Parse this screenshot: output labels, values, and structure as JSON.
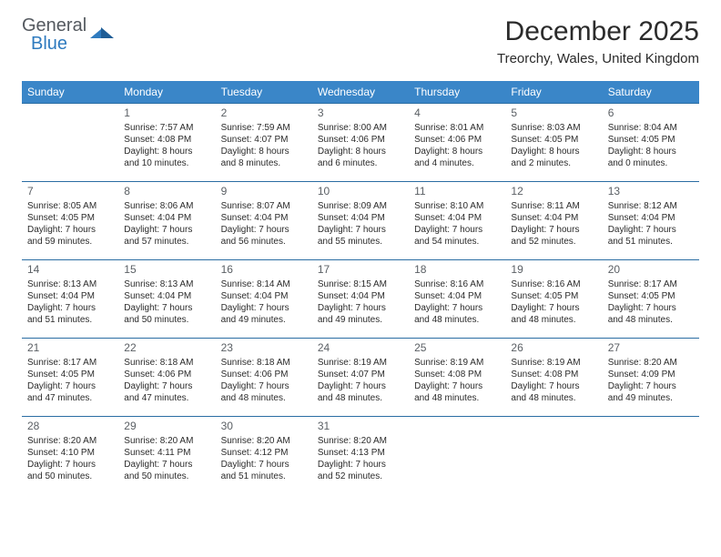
{
  "brand": {
    "top": "General",
    "bottom": "Blue"
  },
  "title": "December 2025",
  "location": "Treorchy, Wales, United Kingdom",
  "colors": {
    "header_bg": "#3a86c8",
    "divider": "#2a6da3",
    "text": "#2b2b2b",
    "logo_gray": "#54595f",
    "logo_blue": "#2f7bbf"
  },
  "daysOfWeek": [
    "Sunday",
    "Monday",
    "Tuesday",
    "Wednesday",
    "Thursday",
    "Friday",
    "Saturday"
  ],
  "weeks": [
    [
      {
        "num": "",
        "lines": [
          "",
          "",
          "",
          ""
        ]
      },
      {
        "num": "1",
        "lines": [
          "Sunrise: 7:57 AM",
          "Sunset: 4:08 PM",
          "Daylight: 8 hours",
          "and 10 minutes."
        ]
      },
      {
        "num": "2",
        "lines": [
          "Sunrise: 7:59 AM",
          "Sunset: 4:07 PM",
          "Daylight: 8 hours",
          "and 8 minutes."
        ]
      },
      {
        "num": "3",
        "lines": [
          "Sunrise: 8:00 AM",
          "Sunset: 4:06 PM",
          "Daylight: 8 hours",
          "and 6 minutes."
        ]
      },
      {
        "num": "4",
        "lines": [
          "Sunrise: 8:01 AM",
          "Sunset: 4:06 PM",
          "Daylight: 8 hours",
          "and 4 minutes."
        ]
      },
      {
        "num": "5",
        "lines": [
          "Sunrise: 8:03 AM",
          "Sunset: 4:05 PM",
          "Daylight: 8 hours",
          "and 2 minutes."
        ]
      },
      {
        "num": "6",
        "lines": [
          "Sunrise: 8:04 AM",
          "Sunset: 4:05 PM",
          "Daylight: 8 hours",
          "and 0 minutes."
        ]
      }
    ],
    [
      {
        "num": "7",
        "lines": [
          "Sunrise: 8:05 AM",
          "Sunset: 4:05 PM",
          "Daylight: 7 hours",
          "and 59 minutes."
        ]
      },
      {
        "num": "8",
        "lines": [
          "Sunrise: 8:06 AM",
          "Sunset: 4:04 PM",
          "Daylight: 7 hours",
          "and 57 minutes."
        ]
      },
      {
        "num": "9",
        "lines": [
          "Sunrise: 8:07 AM",
          "Sunset: 4:04 PM",
          "Daylight: 7 hours",
          "and 56 minutes."
        ]
      },
      {
        "num": "10",
        "lines": [
          "Sunrise: 8:09 AM",
          "Sunset: 4:04 PM",
          "Daylight: 7 hours",
          "and 55 minutes."
        ]
      },
      {
        "num": "11",
        "lines": [
          "Sunrise: 8:10 AM",
          "Sunset: 4:04 PM",
          "Daylight: 7 hours",
          "and 54 minutes."
        ]
      },
      {
        "num": "12",
        "lines": [
          "Sunrise: 8:11 AM",
          "Sunset: 4:04 PM",
          "Daylight: 7 hours",
          "and 52 minutes."
        ]
      },
      {
        "num": "13",
        "lines": [
          "Sunrise: 8:12 AM",
          "Sunset: 4:04 PM",
          "Daylight: 7 hours",
          "and 51 minutes."
        ]
      }
    ],
    [
      {
        "num": "14",
        "lines": [
          "Sunrise: 8:13 AM",
          "Sunset: 4:04 PM",
          "Daylight: 7 hours",
          "and 51 minutes."
        ]
      },
      {
        "num": "15",
        "lines": [
          "Sunrise: 8:13 AM",
          "Sunset: 4:04 PM",
          "Daylight: 7 hours",
          "and 50 minutes."
        ]
      },
      {
        "num": "16",
        "lines": [
          "Sunrise: 8:14 AM",
          "Sunset: 4:04 PM",
          "Daylight: 7 hours",
          "and 49 minutes."
        ]
      },
      {
        "num": "17",
        "lines": [
          "Sunrise: 8:15 AM",
          "Sunset: 4:04 PM",
          "Daylight: 7 hours",
          "and 49 minutes."
        ]
      },
      {
        "num": "18",
        "lines": [
          "Sunrise: 8:16 AM",
          "Sunset: 4:04 PM",
          "Daylight: 7 hours",
          "and 48 minutes."
        ]
      },
      {
        "num": "19",
        "lines": [
          "Sunrise: 8:16 AM",
          "Sunset: 4:05 PM",
          "Daylight: 7 hours",
          "and 48 minutes."
        ]
      },
      {
        "num": "20",
        "lines": [
          "Sunrise: 8:17 AM",
          "Sunset: 4:05 PM",
          "Daylight: 7 hours",
          "and 48 minutes."
        ]
      }
    ],
    [
      {
        "num": "21",
        "lines": [
          "Sunrise: 8:17 AM",
          "Sunset: 4:05 PM",
          "Daylight: 7 hours",
          "and 47 minutes."
        ]
      },
      {
        "num": "22",
        "lines": [
          "Sunrise: 8:18 AM",
          "Sunset: 4:06 PM",
          "Daylight: 7 hours",
          "and 47 minutes."
        ]
      },
      {
        "num": "23",
        "lines": [
          "Sunrise: 8:18 AM",
          "Sunset: 4:06 PM",
          "Daylight: 7 hours",
          "and 48 minutes."
        ]
      },
      {
        "num": "24",
        "lines": [
          "Sunrise: 8:19 AM",
          "Sunset: 4:07 PM",
          "Daylight: 7 hours",
          "and 48 minutes."
        ]
      },
      {
        "num": "25",
        "lines": [
          "Sunrise: 8:19 AM",
          "Sunset: 4:08 PM",
          "Daylight: 7 hours",
          "and 48 minutes."
        ]
      },
      {
        "num": "26",
        "lines": [
          "Sunrise: 8:19 AM",
          "Sunset: 4:08 PM",
          "Daylight: 7 hours",
          "and 48 minutes."
        ]
      },
      {
        "num": "27",
        "lines": [
          "Sunrise: 8:20 AM",
          "Sunset: 4:09 PM",
          "Daylight: 7 hours",
          "and 49 minutes."
        ]
      }
    ],
    [
      {
        "num": "28",
        "lines": [
          "Sunrise: 8:20 AM",
          "Sunset: 4:10 PM",
          "Daylight: 7 hours",
          "and 50 minutes."
        ]
      },
      {
        "num": "29",
        "lines": [
          "Sunrise: 8:20 AM",
          "Sunset: 4:11 PM",
          "Daylight: 7 hours",
          "and 50 minutes."
        ]
      },
      {
        "num": "30",
        "lines": [
          "Sunrise: 8:20 AM",
          "Sunset: 4:12 PM",
          "Daylight: 7 hours",
          "and 51 minutes."
        ]
      },
      {
        "num": "31",
        "lines": [
          "Sunrise: 8:20 AM",
          "Sunset: 4:13 PM",
          "Daylight: 7 hours",
          "and 52 minutes."
        ]
      },
      {
        "num": "",
        "lines": [
          "",
          "",
          "",
          ""
        ]
      },
      {
        "num": "",
        "lines": [
          "",
          "",
          "",
          ""
        ]
      },
      {
        "num": "",
        "lines": [
          "",
          "",
          "",
          ""
        ]
      }
    ]
  ]
}
